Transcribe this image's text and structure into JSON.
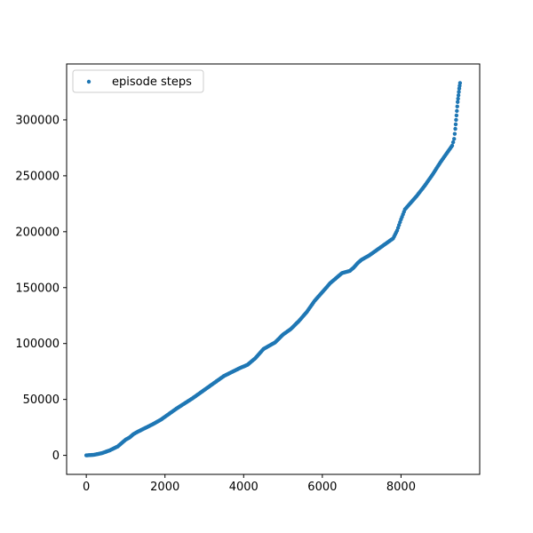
{
  "colors": {
    "series": "#1f77b4",
    "axis": "#000000",
    "background": "#ffffff",
    "legend_border": "#cccccc"
  },
  "chart_data": {
    "type": "scatter",
    "title": "",
    "xlabel": "",
    "ylabel": "",
    "xlim": [
      -500,
      10000
    ],
    "ylim": [
      -17000,
      350000
    ],
    "x_ticks": [
      0,
      2000,
      4000,
      6000,
      8000
    ],
    "x_tick_labels": [
      "0",
      "2000",
      "4000",
      "6000",
      "8000"
    ],
    "y_ticks": [
      0,
      50000,
      100000,
      150000,
      200000,
      250000,
      300000
    ],
    "y_tick_labels": [
      "0",
      "50000",
      "100000",
      "150000",
      "200000",
      "250000",
      "300000"
    ],
    "grid": false,
    "legend": {
      "position": "top-left",
      "entries": [
        "episode steps"
      ]
    },
    "series": [
      {
        "name": "episode steps",
        "x": [
          0,
          200,
          400,
          600,
          800,
          900,
          1000,
          1100,
          1200,
          1300,
          1500,
          1700,
          1900,
          2100,
          2300,
          2500,
          2700,
          2900,
          3100,
          3300,
          3500,
          3700,
          3900,
          4100,
          4300,
          4500,
          4700,
          4800,
          5000,
          5200,
          5400,
          5600,
          5800,
          6000,
          6200,
          6400,
          6500,
          6600,
          6700,
          6800,
          6900,
          7000,
          7200,
          7400,
          7600,
          7800,
          7900,
          8000,
          8100,
          8200,
          8300,
          8400,
          8600,
          8800,
          9000,
          9200,
          9300,
          9350,
          9380,
          9400,
          9420,
          9440,
          9460,
          9480,
          9500
        ],
        "y": [
          0,
          500,
          2000,
          4500,
          8000,
          11000,
          14000,
          16000,
          19000,
          21000,
          24500,
          28000,
          32000,
          37000,
          42000,
          46500,
          51000,
          56000,
          61000,
          66000,
          71000,
          74500,
          78000,
          81000,
          87000,
          95000,
          99000,
          101000,
          108000,
          113000,
          120000,
          128000,
          138000,
          146000,
          154000,
          160000,
          163000,
          164000,
          165000,
          168000,
          172000,
          175000,
          179000,
          184000,
          189000,
          194000,
          201000,
          211000,
          220000,
          224000,
          228000,
          232000,
          241000,
          251000,
          262000,
          272000,
          277000,
          283000,
          292000,
          300000,
          308000,
          316000,
          322000,
          328000,
          333000
        ]
      }
    ]
  }
}
